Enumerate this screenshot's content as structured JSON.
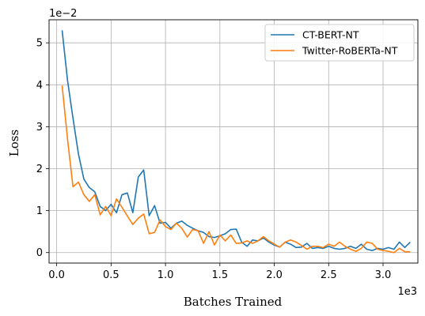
{
  "chart_data": {
    "type": "line",
    "xlabel": "Batches Trained",
    "ylabel": "Loss",
    "x_scale_label": "1e3",
    "y_scale_label": "1e−2",
    "xlim": [
      -0.07,
      3.32
    ],
    "ylim": [
      -0.25,
      5.55
    ],
    "x_ticks": [
      0.0,
      0.5,
      1.0,
      1.5,
      2.0,
      2.5,
      3.0
    ],
    "x_tick_labels": [
      "0.0",
      "0.5",
      "1.0",
      "1.5",
      "2.0",
      "2.5",
      "3.0"
    ],
    "y_ticks": [
      0,
      1,
      2,
      3,
      4,
      5
    ],
    "y_tick_labels": [
      "0",
      "1",
      "2",
      "3",
      "4",
      "5"
    ],
    "grid": true,
    "legend_position": "top-right",
    "x": [
      0.05,
      0.1,
      0.15,
      0.2,
      0.25,
      0.3,
      0.35,
      0.4,
      0.45,
      0.5,
      0.55,
      0.6,
      0.65,
      0.7,
      0.75,
      0.8,
      0.85,
      0.9,
      0.95,
      1.0,
      1.05,
      1.1,
      1.15,
      1.2,
      1.25,
      1.3,
      1.35,
      1.4,
      1.45,
      1.5,
      1.55,
      1.6,
      1.65,
      1.7,
      1.75,
      1.8,
      1.85,
      1.9,
      1.95,
      2.0,
      2.05,
      2.1,
      2.15,
      2.2,
      2.25,
      2.3,
      2.35,
      2.4,
      2.45,
      2.5,
      2.55,
      2.6,
      2.65,
      2.7,
      2.75,
      2.8,
      2.85,
      2.9,
      2.95,
      3.0,
      3.05,
      3.1,
      3.15,
      3.2,
      3.25
    ],
    "series": [
      {
        "name": "CT-BERT-NT",
        "color": "#1f77b4",
        "values": [
          5.3,
          4.1,
          3.2,
          2.35,
          1.75,
          1.55,
          1.45,
          1.1,
          1.0,
          1.15,
          0.95,
          1.38,
          1.42,
          0.95,
          1.8,
          1.97,
          0.88,
          1.12,
          0.7,
          0.72,
          0.58,
          0.7,
          0.75,
          0.65,
          0.58,
          0.52,
          0.48,
          0.38,
          0.36,
          0.4,
          0.45,
          0.55,
          0.56,
          0.25,
          0.15,
          0.3,
          0.28,
          0.35,
          0.25,
          0.18,
          0.13,
          0.25,
          0.2,
          0.12,
          0.13,
          0.22,
          0.1,
          0.12,
          0.1,
          0.15,
          0.1,
          0.08,
          0.1,
          0.15,
          0.1,
          0.2,
          0.08,
          0.05,
          0.1,
          0.08,
          0.12,
          0.08,
          0.25,
          0.12,
          0.25
        ]
      },
      {
        "name": "Twitter-RoBERTa-NT",
        "color": "#ff7f0e",
        "values": [
          3.98,
          2.7,
          1.57,
          1.68,
          1.38,
          1.22,
          1.38,
          0.9,
          1.1,
          0.88,
          1.28,
          1.08,
          0.87,
          0.67,
          0.82,
          0.92,
          0.45,
          0.48,
          0.78,
          0.62,
          0.55,
          0.7,
          0.58,
          0.37,
          0.55,
          0.52,
          0.22,
          0.5,
          0.18,
          0.42,
          0.28,
          0.42,
          0.22,
          0.23,
          0.28,
          0.22,
          0.28,
          0.38,
          0.28,
          0.2,
          0.13,
          0.25,
          0.3,
          0.25,
          0.17,
          0.08,
          0.15,
          0.15,
          0.12,
          0.2,
          0.15,
          0.25,
          0.15,
          0.08,
          0.03,
          0.1,
          0.25,
          0.22,
          0.08,
          0.05,
          0.03,
          0.0,
          0.1,
          0.02,
          0.02
        ]
      }
    ]
  }
}
